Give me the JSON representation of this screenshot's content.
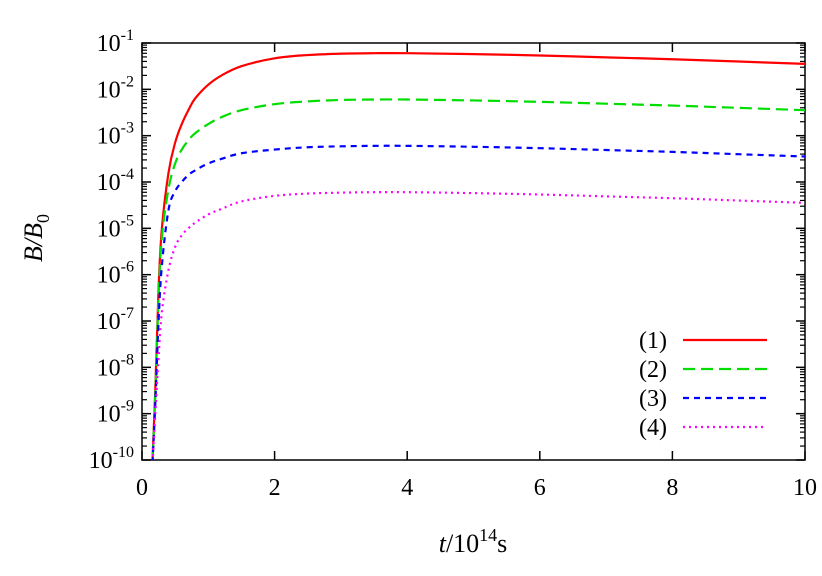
{
  "chart_data": {
    "type": "line",
    "title": "",
    "xlabel": {
      "main": "t",
      "mid": "/10",
      "sup": "14",
      "tail": "s"
    },
    "ylabel": {
      "main": "B",
      "mid": "/B",
      "sub": "0"
    },
    "xlim": [
      0,
      10
    ],
    "ylim_log10": [
      -10,
      -1
    ],
    "yscale": "log",
    "grid": false,
    "legend_position": "bottom-right",
    "x_ticks": [
      "0",
      "2",
      "4",
      "6",
      "8",
      "10"
    ],
    "x_tick_values": [
      0,
      2,
      4,
      6,
      8,
      10
    ],
    "y_ticks": [
      {
        "base": "10",
        "exp": "-1",
        "value": -1
      },
      {
        "base": "10",
        "exp": "-2",
        "value": -2
      },
      {
        "base": "10",
        "exp": "-3",
        "value": -3
      },
      {
        "base": "10",
        "exp": "-4",
        "value": -4
      },
      {
        "base": "10",
        "exp": "-5",
        "value": -5
      },
      {
        "base": "10",
        "exp": "-6",
        "value": -6
      },
      {
        "base": "10",
        "exp": "-7",
        "value": -7
      },
      {
        "base": "10",
        "exp": "-8",
        "value": -8
      },
      {
        "base": "10",
        "exp": "-9",
        "value": -9
      },
      {
        "base": "10",
        "exp": "-10",
        "value": -10
      }
    ],
    "x": [
      0.15,
      0.2,
      0.25,
      0.3,
      0.4,
      0.5,
      0.6,
      0.7,
      0.8,
      1.0,
      1.2,
      1.5,
      2.0,
      2.5,
      3.0,
      3.5,
      4.0,
      5.0,
      6.0,
      7.0,
      8.0,
      9.0,
      10.0
    ],
    "series": [
      {
        "name": "(1)",
        "color": "#ff0000",
        "dash": "",
        "y_log10": [
          -10.3,
          -8.5,
          -6.3,
          -5.0,
          -3.8,
          -3.15,
          -2.75,
          -2.45,
          -2.2,
          -1.9,
          -1.7,
          -1.5,
          -1.33,
          -1.26,
          -1.23,
          -1.22,
          -1.22,
          -1.24,
          -1.27,
          -1.31,
          -1.35,
          -1.4,
          -1.45
        ]
      },
      {
        "name": "(2)",
        "color": "#00dd00",
        "dash": "12,6",
        "y_log10": [
          -10.3,
          -8.6,
          -6.5,
          -5.2,
          -4.15,
          -3.6,
          -3.3,
          -3.1,
          -2.95,
          -2.75,
          -2.6,
          -2.45,
          -2.32,
          -2.26,
          -2.23,
          -2.22,
          -2.22,
          -2.24,
          -2.27,
          -2.31,
          -2.35,
          -2.4,
          -2.45
        ]
      },
      {
        "name": "(3)",
        "color": "#0000ff",
        "dash": "6,5",
        "y_log10": [
          -10.3,
          -8.8,
          -7.0,
          -5.8,
          -4.6,
          -4.2,
          -4.0,
          -3.85,
          -3.75,
          -3.6,
          -3.5,
          -3.38,
          -3.3,
          -3.25,
          -3.23,
          -3.22,
          -3.22,
          -3.24,
          -3.27,
          -3.31,
          -3.35,
          -3.4,
          -3.45
        ]
      },
      {
        "name": "(4)",
        "color": "#ff00ff",
        "dash": "2,4",
        "y_log10": [
          -10.3,
          -9.0,
          -7.8,
          -6.8,
          -5.9,
          -5.4,
          -5.15,
          -5.0,
          -4.88,
          -4.7,
          -4.58,
          -4.42,
          -4.3,
          -4.25,
          -4.23,
          -4.22,
          -4.22,
          -4.24,
          -4.27,
          -4.31,
          -4.35,
          -4.4,
          -4.45
        ]
      }
    ]
  }
}
